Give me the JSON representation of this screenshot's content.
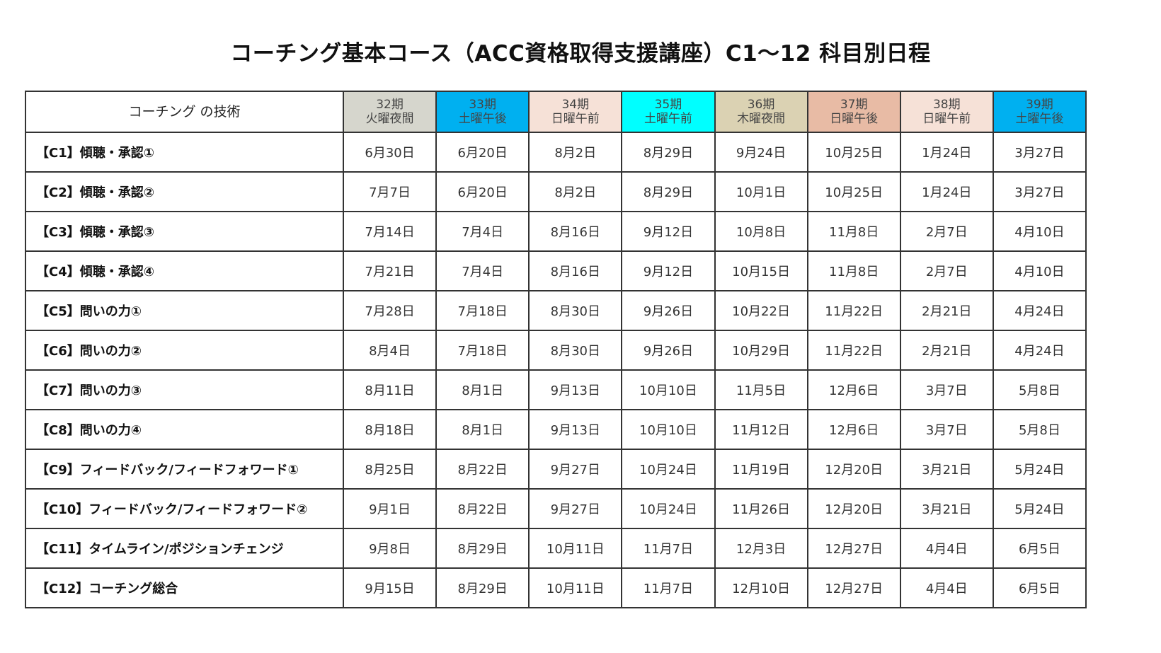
{
  "title": "コーチング基本コース（ACC資格取得支援講座）C1〜12 科目別日程",
  "table": {
    "corner_header": "コーチング の技術",
    "columns": [
      {
        "term": "32期",
        "slot": "火曜夜間",
        "color": "#d6d6cd"
      },
      {
        "term": "33期",
        "slot": "土曜午後",
        "color": "#00b0f0"
      },
      {
        "term": "34期",
        "slot": "日曜午前",
        "color": "#f6e1d7"
      },
      {
        "term": "35期",
        "slot": "土曜午前",
        "color": "#00ffff"
      },
      {
        "term": "36期",
        "slot": "木曜夜間",
        "color": "#dbd2b3"
      },
      {
        "term": "37期",
        "slot": "日曜午後",
        "color": "#e8bba5"
      },
      {
        "term": "38期",
        "slot": "日曜午前",
        "color": "#f6e1d7"
      },
      {
        "term": "39期",
        "slot": "土曜午後",
        "color": "#00b0f0"
      }
    ],
    "rows": [
      {
        "subject": "【C1】傾聴・承認①",
        "dates": [
          "6月30日",
          "6月20日",
          "8月2日",
          "8月29日",
          "9月24日",
          "10月25日",
          "1月24日",
          "3月27日"
        ]
      },
      {
        "subject": "【C2】傾聴・承認②",
        "dates": [
          "7月7日",
          "6月20日",
          "8月2日",
          "8月29日",
          "10月1日",
          "10月25日",
          "1月24日",
          "3月27日"
        ]
      },
      {
        "subject": "【C3】傾聴・承認③",
        "dates": [
          "7月14日",
          "7月4日",
          "8月16日",
          "9月12日",
          "10月8日",
          "11月8日",
          "2月7日",
          "4月10日"
        ]
      },
      {
        "subject": "【C4】傾聴・承認④",
        "dates": [
          "7月21日",
          "7月4日",
          "8月16日",
          "9月12日",
          "10月15日",
          "11月8日",
          "2月7日",
          "4月10日"
        ]
      },
      {
        "subject": "【C5】問いの力①",
        "dates": [
          "7月28日",
          "7月18日",
          "8月30日",
          "9月26日",
          "10月22日",
          "11月22日",
          "2月21日",
          "4月24日"
        ]
      },
      {
        "subject": "【C6】問いの力②",
        "dates": [
          "8月4日",
          "7月18日",
          "8月30日",
          "9月26日",
          "10月29日",
          "11月22日",
          "2月21日",
          "4月24日"
        ]
      },
      {
        "subject": "【C7】問いの力③",
        "dates": [
          "8月11日",
          "8月1日",
          "9月13日",
          "10月10日",
          "11月5日",
          "12月6日",
          "3月7日",
          "5月8日"
        ]
      },
      {
        "subject": "【C8】問いの力④",
        "dates": [
          "8月18日",
          "8月1日",
          "9月13日",
          "10月10日",
          "11月12日",
          "12月6日",
          "3月7日",
          "5月8日"
        ]
      },
      {
        "subject": "【C9】フィードバック/フィードフォワード①",
        "dates": [
          "8月25日",
          "8月22日",
          "9月27日",
          "10月24日",
          "11月19日",
          "12月20日",
          "3月21日",
          "5月24日"
        ]
      },
      {
        "subject": "【C10】フィードバック/フィードフォワード②",
        "dates": [
          "9月1日",
          "8月22日",
          "9月27日",
          "10月24日",
          "11月26日",
          "12月20日",
          "3月21日",
          "5月24日"
        ]
      },
      {
        "subject": "【C11】タイムライン/ポジションチェンジ",
        "dates": [
          "9月8日",
          "8月29日",
          "10月11日",
          "11月7日",
          "12月3日",
          "12月27日",
          "4月4日",
          "6月5日"
        ]
      },
      {
        "subject": "【C12】コーチング総合",
        "dates": [
          "9月15日",
          "8月29日",
          "10月11日",
          "11月7日",
          "12月10日",
          "12月27日",
          "4月4日",
          "6月5日"
        ]
      }
    ]
  }
}
